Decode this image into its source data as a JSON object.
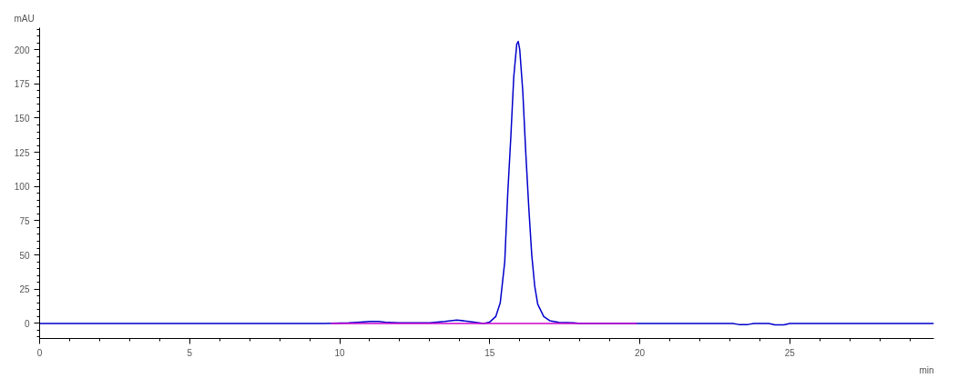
{
  "chart_data": {
    "type": "line",
    "xlabel": "min",
    "ylabel": "mAU",
    "xlim": [
      0,
      29.8
    ],
    "ylim": [
      -11,
      216
    ],
    "xticks": [
      0,
      5,
      10,
      15,
      20,
      25
    ],
    "yticks": [
      0,
      25,
      50,
      75,
      100,
      125,
      150,
      175,
      200
    ],
    "grid": false,
    "marker": "none",
    "line_style": "solid",
    "series": [
      {
        "color": "#0000cc",
        "x": [
          0,
          9.5,
          10.3,
          10.7,
          11.0,
          11.3,
          11.6,
          12,
          12.5,
          13,
          13.5,
          13.9,
          14.3,
          14.8,
          15.0,
          15.2,
          15.35,
          15.5,
          15.6,
          15.7,
          15.8,
          15.9,
          15.95,
          16.0,
          16.1,
          16.2,
          16.3,
          16.4,
          16.5,
          16.6,
          16.8,
          17.0,
          17.3,
          17.8,
          18,
          23.1,
          23.3,
          23.6,
          23.8,
          24.3,
          24.5,
          24.8,
          25,
          29.8
        ],
        "values": [
          0,
          0,
          0.5,
          1,
          1.5,
          1.5,
          0.7,
          0.5,
          0.5,
          0.5,
          1.5,
          2.5,
          1.5,
          0,
          1,
          5,
          15,
          45,
          95,
          135,
          180,
          204,
          206,
          200,
          170,
          125,
          85,
          50,
          27,
          14,
          5,
          2,
          0.8,
          0.5,
          0,
          0,
          -0.8,
          -0.8,
          0,
          0,
          -1,
          -1,
          0,
          0
        ]
      },
      {
        "color": "#cc00cc",
        "x": [
          9.7,
          19.9
        ],
        "values": [
          0,
          0
        ]
      }
    ]
  }
}
